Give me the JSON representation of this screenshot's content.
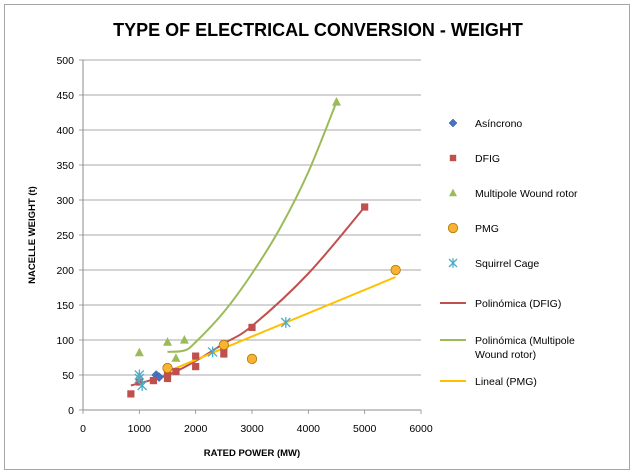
{
  "chart_data": {
    "type": "scatter",
    "title": "TYPE OF ELECTRICAL CONVERSION - WEIGHT",
    "xlabel": "RATED POWER (MW)",
    "ylabel": "NACELLE WEIGHT (t)",
    "xlim": [
      0,
      6000
    ],
    "ylim": [
      0,
      500
    ],
    "xticks": [
      "0",
      "1000",
      "2000",
      "3000",
      "4000",
      "5000",
      "6000"
    ],
    "yticks": [
      "0",
      "50",
      "100",
      "150",
      "200",
      "250",
      "300",
      "350",
      "400",
      "450",
      "500"
    ],
    "grid": "horizontal",
    "legend_position": "right",
    "series": [
      {
        "name": "Asíncrono",
        "marker": "diamond",
        "color": "#4472c4",
        "points": [
          [
            1300,
            50
          ],
          [
            1350,
            47
          ]
        ]
      },
      {
        "name": "DFIG",
        "marker": "square",
        "color": "#c0504d",
        "points": [
          [
            850,
            23
          ],
          [
            1000,
            40
          ],
          [
            1250,
            42
          ],
          [
            1500,
            45
          ],
          [
            1500,
            52
          ],
          [
            1650,
            55
          ],
          [
            2000,
            62
          ],
          [
            2000,
            77
          ],
          [
            2500,
            80
          ],
          [
            2500,
            90
          ],
          [
            3000,
            118
          ],
          [
            5000,
            290
          ]
        ]
      },
      {
        "name": "Multipole Wound rotor",
        "marker": "triangle",
        "color": "#9bbb59",
        "points": [
          [
            1000,
            82
          ],
          [
            1500,
            97
          ],
          [
            1650,
            74
          ],
          [
            1800,
            100
          ],
          [
            4500,
            440
          ]
        ]
      },
      {
        "name": "PMG",
        "marker": "circle",
        "color": "#f9b233",
        "points": [
          [
            1500,
            60
          ],
          [
            2500,
            93
          ],
          [
            3000,
            73
          ],
          [
            5550,
            200
          ]
        ]
      },
      {
        "name": "Squirrel Cage",
        "marker": "asterisk",
        "color": "#4bacc6",
        "points": [
          [
            1000,
            50
          ],
          [
            1000,
            45
          ],
          [
            1050,
            35
          ],
          [
            2300,
            83
          ],
          [
            3600,
            125
          ]
        ]
      }
    ],
    "trendlines": [
      {
        "name": "Polinómica (DFIG)",
        "kind": "polynomial",
        "color": "#c0504d",
        "points": [
          [
            850,
            35
          ],
          [
            1500,
            50
          ],
          [
            2000,
            70
          ],
          [
            2500,
            95
          ],
          [
            3000,
            120
          ],
          [
            4000,
            195
          ],
          [
            5000,
            290
          ]
        ]
      },
      {
        "name": "Polinómica (Multipole Wound rotor)",
        "kind": "polynomial",
        "color": "#9bbb59",
        "points": [
          [
            1500,
            83
          ],
          [
            1800,
            85
          ],
          [
            2000,
            97
          ],
          [
            2500,
            140
          ],
          [
            3000,
            195
          ],
          [
            3500,
            260
          ],
          [
            4000,
            340
          ],
          [
            4500,
            440
          ]
        ]
      },
      {
        "name": "Lineal (PMG)",
        "kind": "linear",
        "color": "#ffc000",
        "points": [
          [
            1500,
            55
          ],
          [
            5550,
            190
          ]
        ]
      }
    ]
  }
}
